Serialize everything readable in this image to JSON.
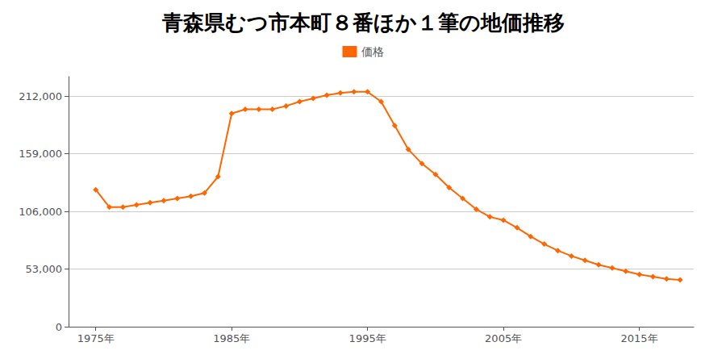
{
  "chart_data": {
    "type": "line",
    "title": "青森県むつ市本町８番ほか１筆の地価推移",
    "x": [
      1975,
      1976,
      1977,
      1978,
      1979,
      1980,
      1981,
      1982,
      1983,
      1984,
      1985,
      1986,
      1987,
      1988,
      1989,
      1990,
      1991,
      1992,
      1993,
      1994,
      1995,
      1996,
      1997,
      1998,
      1999,
      2000,
      2001,
      2002,
      2003,
      2004,
      2005,
      2006,
      2007,
      2008,
      2009,
      2010,
      2011,
      2012,
      2013,
      2014,
      2015,
      2016,
      2017,
      2018
    ],
    "series": [
      {
        "name": "価格",
        "color": "#ff6600",
        "marker": "diamond",
        "values": [
          126000,
          110000,
          110000,
          112000,
          114000,
          116000,
          118000,
          120000,
          123000,
          138000,
          196000,
          200000,
          200000,
          200000,
          203000,
          207000,
          210000,
          213000,
          215000,
          216000,
          216000,
          207000,
          185000,
          163000,
          150000,
          140000,
          128000,
          118000,
          108000,
          101000,
          98000,
          91000,
          83000,
          76000,
          70000,
          65000,
          61000,
          57000,
          54000,
          51000,
          48000,
          46000,
          44000,
          43000
        ]
      }
    ],
    "xlim": [
      1973,
      2019
    ],
    "xticks": [
      {
        "value": 1975,
        "label": "1975年"
      },
      {
        "value": 1985,
        "label": "1985年"
      },
      {
        "value": 1995,
        "label": "1995年"
      },
      {
        "value": 2005,
        "label": "2005年"
      },
      {
        "value": 2015,
        "label": "2015年"
      }
    ],
    "ylim": [
      0,
      230000
    ],
    "yticks": [
      0,
      {
        "value": 53000,
        "label": "53,000"
      },
      {
        "value": 106000,
        "label": "106,000"
      },
      {
        "value": 159000,
        "label": "159,000"
      },
      {
        "value": 212000,
        "label": "212,000"
      }
    ],
    "grid": "y",
    "legend": "top"
  }
}
